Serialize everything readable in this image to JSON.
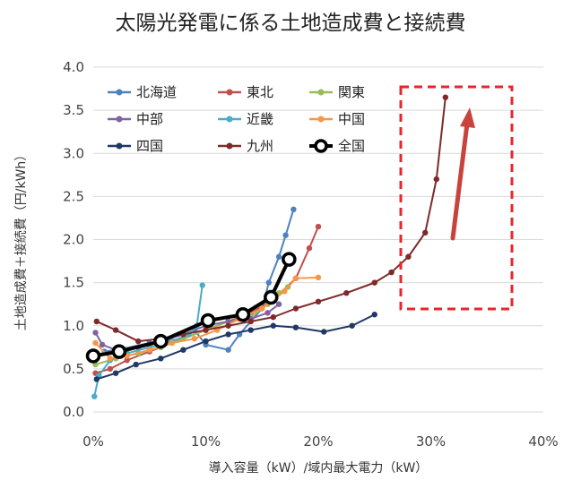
{
  "title": "太陽光発電に係る土地造成費と接続費",
  "chart_data": {
    "type": "line",
    "title": "太陽光発電に係る土地造成費と接続費",
    "xlabel": "導入容量（kW）/域内最大電力（kW）",
    "ylabel": "土地造成費＋接続費（円/kWh）",
    "xlim": [
      0,
      40
    ],
    "ylim": [
      0,
      4.0
    ],
    "x_ticks": [
      "0%",
      "10%",
      "20%",
      "30%",
      "40%"
    ],
    "y_ticks": [
      "0.0",
      "0.5",
      "1.0",
      "1.5",
      "2.0",
      "2.5",
      "3.0",
      "3.5",
      "4.0"
    ],
    "grid": "horizontal",
    "legend_position": "top-left",
    "series": [
      {
        "name": "北海道",
        "color": "#4f81bd",
        "points": [
          [
            0.2,
            0.62
          ],
          [
            1.0,
            0.7
          ],
          [
            2.5,
            0.73
          ],
          [
            5,
            0.8
          ],
          [
            8,
            0.85
          ],
          [
            9,
            0.95
          ],
          [
            10,
            0.78
          ],
          [
            12,
            0.72
          ],
          [
            13,
            0.9
          ],
          [
            14,
            1.05
          ],
          [
            15,
            1.2
          ],
          [
            15.6,
            1.5
          ],
          [
            16.5,
            1.8
          ],
          [
            17.1,
            2.05
          ],
          [
            17.8,
            2.35
          ]
        ]
      },
      {
        "name": "東北",
        "color": "#c0504d",
        "points": [
          [
            0.2,
            0.45
          ],
          [
            1.5,
            0.5
          ],
          [
            3,
            0.6
          ],
          [
            5,
            0.7
          ],
          [
            8,
            0.85
          ],
          [
            10,
            0.95
          ],
          [
            12,
            1.05
          ],
          [
            14,
            1.15
          ],
          [
            16,
            1.3
          ],
          [
            18,
            1.55
          ],
          [
            19.2,
            1.9
          ],
          [
            20,
            2.15
          ]
        ]
      },
      {
        "name": "関東",
        "color": "#9bbb59",
        "points": [
          [
            0.2,
            0.55
          ],
          [
            2,
            0.62
          ],
          [
            4,
            0.68
          ],
          [
            6,
            0.75
          ],
          [
            8,
            0.85
          ],
          [
            10,
            0.95
          ],
          [
            12,
            1.05
          ],
          [
            14,
            1.1
          ],
          [
            15.5,
            1.25
          ],
          [
            16.5,
            1.38
          ],
          [
            17.3,
            1.45
          ]
        ]
      },
      {
        "name": "中部",
        "color": "#8064a2",
        "points": [
          [
            0.2,
            0.92
          ],
          [
            0.8,
            0.78
          ],
          [
            2,
            0.72
          ],
          [
            4,
            0.75
          ],
          [
            6,
            0.82
          ],
          [
            8,
            0.9
          ],
          [
            10,
            1.0
          ],
          [
            12,
            1.05
          ],
          [
            14,
            1.08
          ],
          [
            15.5,
            1.15
          ],
          [
            16.5,
            1.25
          ]
        ]
      },
      {
        "name": "近畿",
        "color": "#4bacc6",
        "points": [
          [
            0.1,
            0.18
          ],
          [
            0.5,
            0.42
          ],
          [
            1.5,
            0.6
          ],
          [
            3,
            0.68
          ],
          [
            5,
            0.75
          ],
          [
            7,
            0.82
          ],
          [
            8.5,
            0.9
          ],
          [
            9.2,
            1.0
          ],
          [
            9.7,
            1.47
          ]
        ]
      },
      {
        "name": "中国",
        "color": "#f79646",
        "points": [
          [
            0.2,
            0.8
          ],
          [
            1.5,
            0.62
          ],
          [
            3,
            0.65
          ],
          [
            5,
            0.72
          ],
          [
            7,
            0.8
          ],
          [
            9,
            0.85
          ],
          [
            11,
            0.95
          ],
          [
            13,
            1.08
          ],
          [
            15,
            1.2
          ],
          [
            17,
            1.4
          ],
          [
            18,
            1.55
          ],
          [
            20,
            1.56
          ]
        ]
      },
      {
        "name": "四国",
        "color": "#1f3864",
        "points": [
          [
            0.3,
            0.38
          ],
          [
            2,
            0.45
          ],
          [
            3.8,
            0.55
          ],
          [
            6,
            0.62
          ],
          [
            8,
            0.72
          ],
          [
            10,
            0.82
          ],
          [
            12,
            0.9
          ],
          [
            14,
            0.95
          ],
          [
            16,
            1.0
          ],
          [
            18,
            0.98
          ],
          [
            20.5,
            0.93
          ],
          [
            23,
            1.0
          ],
          [
            25,
            1.13
          ]
        ]
      },
      {
        "name": "九州",
        "color": "#7f2a2a",
        "points": [
          [
            0.3,
            1.05
          ],
          [
            2,
            0.95
          ],
          [
            4,
            0.82
          ],
          [
            6,
            0.85
          ],
          [
            8,
            0.9
          ],
          [
            10,
            0.95
          ],
          [
            12,
            1.0
          ],
          [
            14,
            1.05
          ],
          [
            16,
            1.1
          ],
          [
            18,
            1.2
          ],
          [
            20,
            1.28
          ],
          [
            22.5,
            1.38
          ],
          [
            25,
            1.5
          ],
          [
            26.5,
            1.62
          ],
          [
            28,
            1.8
          ],
          [
            29.5,
            2.08
          ],
          [
            30.5,
            2.7
          ],
          [
            31.3,
            3.65
          ]
        ]
      },
      {
        "name": "全国",
        "color": "#000000",
        "points": [
          [
            0,
            0.65
          ],
          [
            2.3,
            0.7
          ],
          [
            6,
            0.82
          ],
          [
            10.2,
            1.06
          ],
          [
            13.3,
            1.13
          ],
          [
            15.8,
            1.33
          ],
          [
            17.4,
            1.77
          ]
        ]
      }
    ],
    "annotations": [
      {
        "type": "dashed-box",
        "color": "#e8262b"
      },
      {
        "type": "arrow",
        "color": "#c9433d"
      }
    ]
  }
}
